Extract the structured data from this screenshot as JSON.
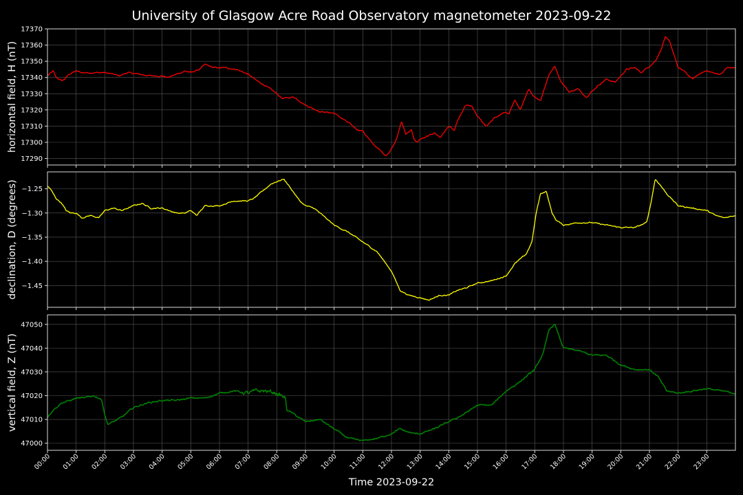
{
  "chart_data": {
    "type": "line",
    "title": "University of Glasgow Acre Road Observatory magnetometer 2023-09-22",
    "xlabel": "Time 2023-09-22",
    "x_unit": "hours",
    "xlim": [
      0,
      24
    ],
    "x_tick_labels": [
      "00:00",
      "01:00",
      "02:00",
      "03:00",
      "04:00",
      "05:00",
      "06:00",
      "07:00",
      "08:00",
      "09:00",
      "10:00",
      "11:00",
      "12:00",
      "13:00",
      "14:00",
      "15:00",
      "16:00",
      "17:00",
      "18:00",
      "19:00",
      "20:00",
      "21:00",
      "22:00",
      "23:00"
    ],
    "grid": true,
    "panels": [
      {
        "ylabel": "horizontal field, H (nT)",
        "color": "#ff0000",
        "ylim": [
          17286,
          17370
        ],
        "yticks": [
          17290,
          17300,
          17310,
          17320,
          17330,
          17340,
          17350,
          17360,
          17370
        ],
        "ytick_labels": [
          "17290",
          "17300",
          "17310",
          "17320",
          "17330",
          "17340",
          "17350",
          "17360",
          "17370"
        ],
        "x": [
          0,
          0.2,
          0.3,
          0.5,
          0.6,
          0.75,
          1.0,
          1.2,
          1.5,
          2.0,
          2.3,
          2.5,
          2.8,
          3.2,
          3.6,
          4.0,
          4.2,
          4.5,
          4.8,
          5.0,
          5.3,
          5.5,
          5.8,
          6.2,
          6.6,
          7.0,
          7.3,
          7.6,
          8.0,
          8.2,
          8.6,
          9.0,
          9.5,
          10.0,
          10.5,
          10.8,
          11.0,
          11.3,
          11.6,
          11.8,
          11.9,
          12.2,
          12.35,
          12.5,
          12.7,
          12.8,
          12.9,
          13.0,
          13.2,
          13.5,
          13.7,
          14.0,
          14.2,
          14.3,
          14.6,
          14.8,
          15.0,
          15.3,
          15.6,
          15.9,
          16.1,
          16.3,
          16.5,
          16.8,
          16.9,
          17.0,
          17.2,
          17.5,
          17.7,
          17.9,
          18.2,
          18.5,
          18.8,
          19.2,
          19.5,
          19.8,
          20.2,
          20.5,
          20.7,
          21.0,
          21.2,
          21.4,
          21.55,
          21.7,
          21.9,
          22.0,
          22.2,
          22.5,
          22.8,
          23.0,
          23.2,
          23.5,
          23.7,
          24.0
        ],
        "y": [
          17341,
          17344,
          17340,
          17338,
          17339,
          17342,
          17344,
          17343,
          17343,
          17343,
          17342,
          17341,
          17343,
          17342,
          17341,
          17341,
          17340,
          17342,
          17344,
          17343,
          17345,
          17348,
          17346,
          17346,
          17345,
          17342,
          17338,
          17335,
          17330,
          17327,
          17328,
          17323,
          17319,
          17318,
          17312,
          17308,
          17307,
          17300,
          17295,
          17292,
          17293,
          17303,
          17313,
          17305,
          17308,
          17301,
          17300,
          17302,
          17303,
          17306,
          17303,
          17310,
          17307,
          17313,
          17323,
          17322,
          17316,
          17310,
          17315,
          17318,
          17318,
          17326,
          17320,
          17333,
          17330,
          17328,
          17326,
          17342,
          17347,
          17338,
          17331,
          17333,
          17328,
          17335,
          17339,
          17337,
          17345,
          17346,
          17343,
          17347,
          17350,
          17357,
          17365,
          17362,
          17352,
          17346,
          17344,
          17339,
          17343,
          17344,
          17343,
          17342,
          17346,
          17346
        ]
      },
      {
        "ylabel": "declination, D (degrees)",
        "color": "#ffff00",
        "ylim": [
          -1.495,
          -1.215
        ],
        "yticks": [
          -1.45,
          -1.4,
          -1.35,
          -1.3,
          -1.25
        ],
        "ytick_labels": [
          "−1.45",
          "−1.40",
          "−1.35",
          "−1.30",
          "−1.25"
        ],
        "x": [
          0,
          0.1,
          0.3,
          0.5,
          0.65,
          0.8,
          1.0,
          1.2,
          1.5,
          1.8,
          2.0,
          2.3,
          2.6,
          3.0,
          3.3,
          3.6,
          4.0,
          4.5,
          4.8,
          5.0,
          5.2,
          5.5,
          6.0,
          6.5,
          7.0,
          7.2,
          7.5,
          7.8,
          8.0,
          8.25,
          8.5,
          8.8,
          9.0,
          9.3,
          9.6,
          10.0,
          10.5,
          11.0,
          11.5,
          12.0,
          12.3,
          12.6,
          13.0,
          13.3,
          13.7,
          14.0,
          14.3,
          14.6,
          15.0,
          15.5,
          16.0,
          16.3,
          16.7,
          16.9,
          17.05,
          17.2,
          17.4,
          17.6,
          17.75,
          18.0,
          18.5,
          19.0,
          19.5,
          20.0,
          20.5,
          20.9,
          21.05,
          21.2,
          21.35,
          21.6,
          22.0,
          22.5,
          23.0,
          23.3,
          23.6,
          24.0
        ],
        "y": [
          -1.245,
          -1.25,
          -1.27,
          -1.28,
          -1.295,
          -1.3,
          -1.3,
          -1.31,
          -1.305,
          -1.31,
          -1.295,
          -1.29,
          -1.295,
          -1.285,
          -1.28,
          -1.29,
          -1.29,
          -1.3,
          -1.3,
          -1.295,
          -1.305,
          -1.285,
          -1.285,
          -1.275,
          -1.275,
          -1.27,
          -1.255,
          -1.24,
          -1.235,
          -1.23,
          -1.25,
          -1.275,
          -1.285,
          -1.29,
          -1.305,
          -1.325,
          -1.34,
          -1.36,
          -1.38,
          -1.42,
          -1.46,
          -1.47,
          -1.475,
          -1.48,
          -1.47,
          -1.47,
          -1.46,
          -1.455,
          -1.445,
          -1.44,
          -1.43,
          -1.405,
          -1.385,
          -1.36,
          -1.3,
          -1.26,
          -1.255,
          -1.3,
          -1.315,
          -1.325,
          -1.32,
          -1.32,
          -1.325,
          -1.33,
          -1.33,
          -1.32,
          -1.28,
          -1.23,
          -1.24,
          -1.26,
          -1.285,
          -1.29,
          -1.295,
          -1.305,
          -1.31,
          -1.305
        ]
      },
      {
        "ylabel": "vertical field, Z (nT)",
        "color": "#008000",
        "ylim": [
          46997,
          47054
        ],
        "yticks": [
          47000,
          47010,
          47020,
          47030,
          47040,
          47050
        ],
        "ytick_labels": [
          "47000",
          "47010",
          "47020",
          "47030",
          "47040",
          "47050"
        ],
        "x": [
          0,
          0.2,
          0.5,
          0.8,
          1.0,
          1.3,
          1.6,
          1.8,
          1.9,
          2.0,
          2.1,
          2.3,
          2.6,
          3.0,
          3.5,
          4.0,
          4.5,
          5.0,
          5.5,
          6.0,
          6.5,
          7.0,
          7.3,
          7.6,
          8.0,
          8.3,
          8.35,
          8.5,
          9.0,
          9.5,
          10.0,
          10.5,
          11.0,
          11.5,
          12.0,
          12.3,
          12.5,
          12.8,
          13.0,
          13.5,
          14.0,
          14.5,
          15.0,
          15.5,
          16.0,
          16.5,
          17.0,
          17.3,
          17.5,
          17.7,
          18.0,
          18.5,
          19.0,
          19.5,
          20.0,
          20.5,
          21.0,
          21.3,
          21.6,
          22.0,
          22.5,
          23.0,
          23.5,
          24.0
        ],
        "y": [
          47011,
          47014,
          47017,
          47018,
          47019,
          47019,
          47020,
          47019,
          47018,
          47012,
          47008,
          47009,
          47011,
          47015,
          47017,
          47018,
          47018,
          47019,
          47019,
          47021,
          47022,
          47021,
          47022,
          47022,
          47021,
          47019,
          47014,
          47013,
          47009,
          47010,
          47006,
          47002,
          47001,
          47002,
          47004,
          47006,
          47005,
          47004,
          47004,
          47006,
          47009,
          47012,
          47016,
          47016,
          47022,
          47026,
          47031,
          47038,
          47048,
          47050,
          47040,
          47039,
          47037,
          47037,
          47033,
          47031,
          47031,
          47028,
          47022,
          47021,
          47022,
          47023,
          47022,
          47021
        ]
      }
    ]
  }
}
